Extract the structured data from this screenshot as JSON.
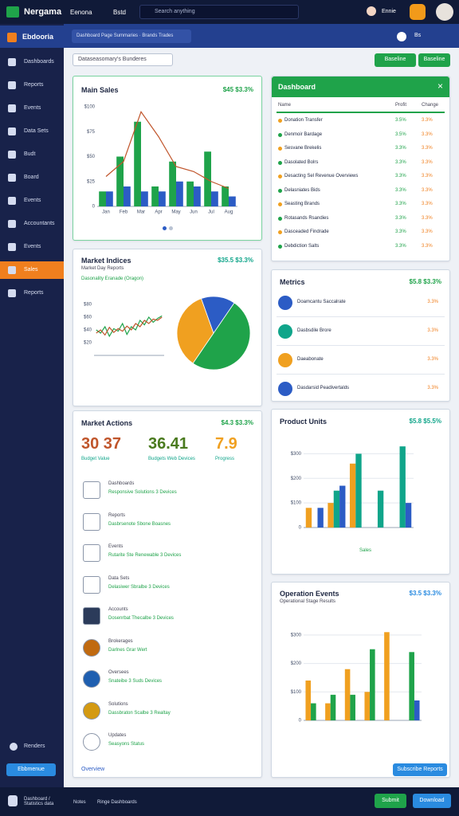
{
  "topbar": {
    "brand": "Nergama",
    "menu": "Eenona",
    "tab": "Bstd",
    "search": "Search anything",
    "user": "Ennie"
  },
  "sidebar": {
    "title": "Ebdooria",
    "items": [
      "Dashboards",
      "Reports",
      "Events",
      "Data Sets",
      "Budt",
      "Board",
      "Events",
      "Accountants",
      "Events",
      "Sales",
      "Reports"
    ],
    "active": 9,
    "footer": "Renders",
    "button": "Ebbmenue"
  },
  "header": {
    "breadcrumb": "Dashboard Page Summaries · Brands Trades",
    "badge": "Bs"
  },
  "toolbar": {
    "dropdown": "Dataseasomary's Bunderes",
    "buttons": [
      "Baseline",
      "Baseline"
    ]
  },
  "main_sales": {
    "title": "Main Sales",
    "value": "$45 $3.3%",
    "chart": {
      "type": "bar",
      "categories": [
        "Jan",
        "Feb",
        "Mar",
        "Apr",
        "May",
        "Jun",
        "Jul",
        "Aug"
      ],
      "ylim": [
        0,
        100
      ],
      "yticks": [
        0,
        {
          "value": 25,
          "label": "$25"
        },
        {
          "value": 50,
          "label": "$50"
        },
        {
          "value": 75,
          "label": "$75"
        },
        {
          "value": 100,
          "label": "$100"
        }
      ],
      "grid": false,
      "series": [
        {
          "color": "#1fa34a",
          "values": [
            15,
            50,
            85,
            20,
            45,
            25,
            55,
            20
          ]
        },
        {
          "color": "#2c5cc5",
          "values": [
            15,
            20,
            15,
            15,
            25,
            20,
            15,
            10
          ]
        },
        {
          "type": "line",
          "color": "#c0552b",
          "values": [
            30,
            45,
            95,
            70,
            40,
            35,
            25,
            18
          ]
        }
      ]
    }
  },
  "dashboard": {
    "title": "Dashboard",
    "columns": [
      "Name",
      "Profit",
      "Change"
    ],
    "rows": [
      [
        "Donation Transfer",
        "3.5%",
        "3.3%"
      ],
      [
        "Denmoir Bardage",
        "3.5%",
        "3.3%"
      ],
      [
        "Sesvane Brekelis",
        "3.3%",
        "3.3%"
      ],
      [
        "Dasolated Bolrs",
        "3.3%",
        "3.3%"
      ],
      [
        "Desacting Sel Revenue Overviews",
        "3.3%",
        "3.3%"
      ],
      [
        "Delasniates Bids",
        "3.3%",
        "3.3%"
      ],
      [
        "Seasting Brands",
        "3.3%",
        "3.3%"
      ],
      [
        "Rotasands Rsandies",
        "3.3%",
        "3.3%"
      ],
      [
        "Dasceaded Findrade",
        "3.3%",
        "3.3%"
      ],
      [
        "Debdiction Salts",
        "3.3%",
        "3.3%"
      ]
    ]
  },
  "market_indices": {
    "title": "Market Indices",
    "value": "$35.5 $3.3%",
    "subtitle": "Market Day Reports",
    "filter": "Dasonality Eranade (Oragon)",
    "line": {
      "type": "line",
      "categories": [
        null,
        null,
        null,
        null,
        null,
        null,
        null,
        null,
        null,
        null,
        null,
        null,
        null,
        null,
        null,
        null
      ],
      "ylim": [
        0,
        100
      ],
      "yticks": [
        {
          "value": 20,
          "label": "$20"
        },
        {
          "value": 40,
          "label": "$40"
        },
        {
          "value": 60,
          "label": "$60"
        },
        {
          "value": 80,
          "label": "$80"
        }
      ],
      "grid": false,
      "series": [
        {
          "color": "#1fa34a",
          "values": [
            40,
            35,
            45,
            30,
            42,
            38,
            50,
            33,
            45,
            40,
            55,
            48,
            60,
            52,
            58,
            62
          ]
        },
        {
          "color": "#c0552b",
          "values": [
            35,
            40,
            32,
            44,
            36,
            42,
            38,
            46,
            40,
            50,
            45,
            55,
            50,
            57,
            55,
            60
          ]
        }
      ]
    },
    "pie": {
      "type": "pie",
      "values": [
        50,
        35,
        15
      ],
      "colors": [
        "#1fa34a",
        "#f0a020",
        "#2c5cc5"
      ]
    }
  },
  "metrics": {
    "title": "Metrics",
    "value": "$5.8 $3.3%",
    "rows": [
      {
        "label": "Doamcantu Saccalrate",
        "value": "3.3%"
      },
      {
        "label": "Dasbsdile Brore",
        "value": "3.3%"
      },
      {
        "label": "Daeabonate",
        "value": "3.3%"
      },
      {
        "label": "Dasdarsid Peadivertalds",
        "value": "3.3%"
      }
    ]
  },
  "market_actions": {
    "title": "Market Actions",
    "value": "$4.3 $3.3%",
    "stats": [
      {
        "value": "30 37",
        "label": "Budget Value"
      },
      {
        "value": "36.41",
        "label": "Budgets Web Devices"
      },
      {
        "value": "7.9",
        "label": "Progress"
      }
    ],
    "items": [
      {
        "title": "Dashboards",
        "text": "Responsive Solutions 3 Devices"
      },
      {
        "title": "Reports",
        "text": "Dasbrsenote Sbone Boasnes"
      },
      {
        "title": "Events",
        "text": "Rutarite Ste Renewable 3 Devices"
      },
      {
        "title": "Data Sets",
        "text": "Delasiwer Sbralbe 3 Devices"
      },
      {
        "title": "Accounts",
        "text": "Dosenrbat Thecalbe 3 Devices"
      },
      {
        "title": "Brokerages",
        "text": "Darlnes Grar Wert"
      },
      {
        "title": "Oversees",
        "text": "Snateibe 3 Suds Devices"
      },
      {
        "title": "Solutions",
        "text": "Dassbraton Scalbe 3 Realtay"
      },
      {
        "title": "Updates",
        "text": "Seasyons Status"
      }
    ],
    "link": "Overview"
  },
  "product_units": {
    "title": "Product Units",
    "value": "$5.8 $5.5%",
    "legend": "Sales",
    "chart": {
      "type": "bar",
      "categories": [
        null,
        null,
        null,
        null,
        null
      ],
      "ylim": [
        0,
        350
      ],
      "yticks": [
        0,
        {
          "value": 100,
          "label": "$100"
        },
        {
          "value": 200,
          "label": "$200"
        },
        {
          "value": 300,
          "label": "$300"
        }
      ],
      "grid": true,
      "series": [
        {
          "color": "#f0a020",
          "values": [
            80,
            100,
            260,
            null,
            null
          ]
        },
        {
          "color": "#10a58a",
          "values": [
            null,
            150,
            300,
            150,
            330
          ]
        },
        {
          "color": "#2c5cc5",
          "values": [
            80,
            170,
            null,
            null,
            100
          ]
        }
      ]
    }
  },
  "operation_events": {
    "title": "Operation Events",
    "value": "$3.5 $3.3%",
    "subtitle": "Operational Stage Results",
    "button": "Subscribe Reports",
    "chart": {
      "type": "bar",
      "categories": [
        null,
        null,
        null,
        null,
        null,
        null
      ],
      "ylim": [
        0,
        350
      ],
      "yticks": [
        0,
        {
          "value": 100,
          "label": "$100"
        },
        {
          "value": 200,
          "label": "$200"
        },
        {
          "value": 300,
          "label": "$300"
        }
      ],
      "grid": true,
      "series": [
        {
          "color": "#f0a020",
          "values": [
            140,
            60,
            180,
            100,
            310,
            null
          ]
        },
        {
          "color": "#1fa34a",
          "values": [
            60,
            90,
            90,
            250,
            null,
            240
          ]
        },
        {
          "color": "#2c5cc5",
          "values": [
            null,
            null,
            null,
            null,
            null,
            70
          ]
        }
      ]
    }
  },
  "footer": {
    "path": "Dashboard / Statistics data",
    "notes": "Notes",
    "link": "Ringe Dashboards",
    "buttons": [
      "Submit",
      "Download"
    ]
  }
}
